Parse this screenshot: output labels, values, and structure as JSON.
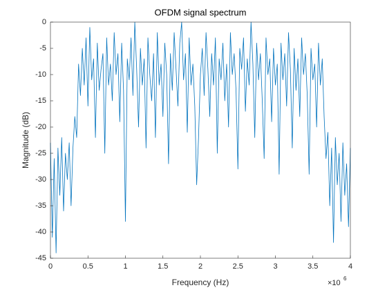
{
  "chart_data": {
    "type": "line",
    "title": "OFDM signal spectrum",
    "xlabel": "Frequency (Hz)",
    "ylabel": "Magnitude (dB)",
    "x_multiplier_base": "×10",
    "x_multiplier_exponent": "6",
    "color": "#0072bd",
    "xlim": [
      0,
      4
    ],
    "xticks": [
      0,
      0.5,
      1,
      1.5,
      2,
      2.5,
      3,
      3.5,
      4
    ],
    "ylim": [
      -45,
      0
    ],
    "yticks": [
      -45,
      -40,
      -35,
      -30,
      -25,
      -20,
      -15,
      -10,
      -5,
      0
    ],
    "x": [
      0,
      0.025,
      0.05,
      0.075,
      0.1,
      0.125,
      0.15,
      0.175,
      0.2,
      0.225,
      0.25,
      0.275,
      0.3,
      0.325,
      0.35,
      0.375,
      0.4,
      0.425,
      0.45,
      0.475,
      0.5,
      0.525,
      0.55,
      0.575,
      0.6,
      0.625,
      0.65,
      0.675,
      0.7,
      0.725,
      0.75,
      0.775,
      0.8,
      0.825,
      0.85,
      0.875,
      0.9,
      0.925,
      0.95,
      0.975,
      1,
      1.025,
      1.05,
      1.075,
      1.1,
      1.125,
      1.15,
      1.175,
      1.2,
      1.225,
      1.25,
      1.275,
      1.3,
      1.325,
      1.35,
      1.375,
      1.4,
      1.425,
      1.45,
      1.475,
      1.5,
      1.525,
      1.55,
      1.575,
      1.6,
      1.625,
      1.65,
      1.675,
      1.7,
      1.725,
      1.75,
      1.775,
      1.8,
      1.825,
      1.85,
      1.875,
      1.9,
      1.925,
      1.95,
      1.975,
      2,
      2.025,
      2.05,
      2.075,
      2.1,
      2.125,
      2.15,
      2.175,
      2.2,
      2.225,
      2.25,
      2.275,
      2.3,
      2.325,
      2.35,
      2.375,
      2.4,
      2.425,
      2.45,
      2.475,
      2.5,
      2.525,
      2.55,
      2.575,
      2.6,
      2.625,
      2.65,
      2.675,
      2.7,
      2.725,
      2.75,
      2.775,
      2.8,
      2.825,
      2.85,
      2.875,
      2.9,
      2.925,
      2.95,
      2.975,
      3,
      3.025,
      3.05,
      3.075,
      3.1,
      3.125,
      3.15,
      3.175,
      3.2,
      3.225,
      3.25,
      3.275,
      3.3,
      3.325,
      3.35,
      3.375,
      3.4,
      3.425,
      3.45,
      3.475,
      3.5,
      3.525,
      3.55,
      3.575,
      3.6,
      3.625,
      3.65,
      3.675,
      3.7,
      3.725,
      3.75,
      3.775,
      3.8,
      3.825,
      3.85,
      3.875,
      3.9,
      3.925,
      3.95,
      3.975,
      4
    ],
    "values": [
      -23,
      -41,
      -26,
      -44,
      -24,
      -33,
      -22,
      -36,
      -25,
      -30,
      -23,
      -35,
      -24,
      -18,
      -22,
      -8,
      -14,
      -5,
      -12,
      -3,
      -16,
      -1,
      -11,
      -7,
      -22,
      -4,
      -13,
      -9,
      -6,
      -25,
      -3,
      -12,
      -8,
      -15,
      -2,
      -10,
      -6,
      -19,
      -4,
      -13,
      -38,
      -7,
      -11,
      -3,
      -14,
      0,
      -9,
      -20,
      -5,
      -12,
      -7,
      -24,
      -3,
      -10,
      -15,
      -6,
      -22,
      -2,
      -12,
      -8,
      -18,
      -4,
      -10,
      -27,
      -6,
      -13,
      -2,
      -9,
      -16,
      -4,
      0,
      -11,
      -6,
      -21,
      -3,
      -12,
      -8,
      -16,
      -31,
      -22,
      -10,
      -5,
      -14,
      -2,
      -9,
      -18,
      -6,
      -12,
      -3,
      -25,
      -7,
      -11,
      -4,
      -15,
      -8,
      -20,
      -2,
      -10,
      -6,
      -13,
      -28,
      -5,
      -9,
      -3,
      -17,
      -7,
      -12,
      0,
      -8,
      -22,
      -4,
      -11,
      -6,
      -15,
      -26,
      -3,
      -10,
      -7,
      -19,
      -5,
      -12,
      -8,
      -29,
      -4,
      -11,
      -6,
      -16,
      -2,
      -9,
      -24,
      -5,
      -13,
      -7,
      -18,
      -3,
      -10,
      -6,
      -14,
      -29,
      -5,
      -11,
      -8,
      -20,
      -4,
      -12,
      -7,
      -18,
      -26,
      -21,
      -35,
      -24,
      -42,
      -22,
      -31,
      -25,
      -38,
      -23,
      -33,
      -27,
      -39,
      -24
    ]
  }
}
